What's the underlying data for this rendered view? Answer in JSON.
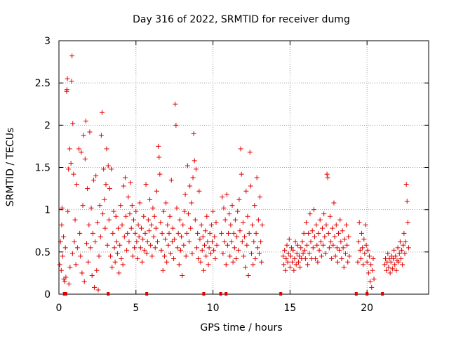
{
  "chart_data": {
    "type": "scatter",
    "title": "Day 316 of 2022, SRMTID for receiver dumg",
    "xlabel": "GPS time / hours",
    "ylabel": "SRMTID / TECUs",
    "xlim": [
      0,
      24
    ],
    "ylim": [
      0,
      3
    ],
    "xticks": [
      0,
      5,
      10,
      15,
      20
    ],
    "yticks": [
      0,
      0.5,
      1,
      1.5,
      2,
      2.5,
      3
    ],
    "xtick_labels": [
      "0",
      "5",
      "10",
      "15",
      "20"
    ],
    "ytick_labels": [
      "0",
      "0.5",
      "1",
      "1.5",
      "2",
      "2.5",
      "3"
    ],
    "grid": true,
    "marker": "+",
    "color": "#e00000",
    "series_name": "SRMTID",
    "baseline_markers_x": [
      0.35,
      0.45,
      3.2,
      5.7,
      9.4,
      10.5,
      10.85,
      14.4,
      19.3,
      20.0,
      21.0
    ],
    "points": [
      [
        0.05,
        0.35
      ],
      [
        0.1,
        0.62
      ],
      [
        0.15,
        0.28
      ],
      [
        0.18,
        0.82
      ],
      [
        0.2,
        1.02
      ],
      [
        0.25,
        0.45
      ],
      [
        0.3,
        0.68
      ],
      [
        0.32,
        0.18
      ],
      [
        0.38,
        0.15
      ],
      [
        0.42,
        0.55
      ],
      [
        0.45,
        0.2
      ],
      [
        0.5,
        2.4
      ],
      [
        0.52,
        2.42
      ],
      [
        0.55,
        2.55
      ],
      [
        0.58,
        0.98
      ],
      [
        0.62,
        1.48
      ],
      [
        0.65,
        0.12
      ],
      [
        0.7,
        1.72
      ],
      [
        0.72,
        0.32
      ],
      [
        0.78,
        1.55
      ],
      [
        0.82,
        2.52
      ],
      [
        0.85,
        2.82
      ],
      [
        0.88,
        0.48
      ],
      [
        0.9,
        2.02
      ],
      [
        0.95,
        1.42
      ],
      [
        1.0,
        0.62
      ],
      [
        1.05,
        0.88
      ],
      [
        1.1,
        0.35
      ],
      [
        1.15,
        1.3
      ],
      [
        1.2,
        0.55
      ],
      [
        1.3,
        1.72
      ],
      [
        1.35,
        0.72
      ],
      [
        1.4,
        0.45
      ],
      [
        1.45,
        1.68
      ],
      [
        1.5,
        0.25
      ],
      [
        1.55,
        1.05
      ],
      [
        1.6,
        1.88
      ],
      [
        1.65,
        0.15
      ],
      [
        1.7,
        1.6
      ],
      [
        1.75,
        2.05
      ],
      [
        1.8,
        0.6
      ],
      [
        1.85,
        1.25
      ],
      [
        1.9,
        0.38
      ],
      [
        1.95,
        0.82
      ],
      [
        2.0,
        1.92
      ],
      [
        2.05,
        0.55
      ],
      [
        2.1,
        1.02
      ],
      [
        2.15,
        0.22
      ],
      [
        2.2,
        0.72
      ],
      [
        2.25,
        1.35
      ],
      [
        2.3,
        0.08
      ],
      [
        2.35,
        0.62
      ],
      [
        2.4,
        1.4
      ],
      [
        2.45,
        0.28
      ],
      [
        2.5,
        0.85
      ],
      [
        2.55,
        0.05
      ],
      [
        2.6,
        0.45
      ],
      [
        2.65,
        1.05
      ],
      [
        2.7,
        0.68
      ],
      [
        2.75,
        1.88
      ],
      [
        2.8,
        2.15
      ],
      [
        2.85,
        0.95
      ],
      [
        2.9,
        1.48
      ],
      [
        2.95,
        1.12
      ],
      [
        3.0,
        0.78
      ],
      [
        3.05,
        1.3
      ],
      [
        3.1,
        1.72
      ],
      [
        3.15,
        0.58
      ],
      [
        3.2,
        1.52
      ],
      [
        3.25,
        0.88
      ],
      [
        3.3,
        1.25
      ],
      [
        3.35,
        0.45
      ],
      [
        3.4,
        1.48
      ],
      [
        3.45,
        0.32
      ],
      [
        3.5,
        0.72
      ],
      [
        3.55,
        0.98
      ],
      [
        3.6,
        0.55
      ],
      [
        3.65,
        0.38
      ],
      [
        3.7,
        0.92
      ],
      [
        3.75,
        0.62
      ],
      [
        3.8,
        0.48
      ],
      [
        3.85,
        0.78
      ],
      [
        3.9,
        0.25
      ],
      [
        3.95,
        0.58
      ],
      [
        4.0,
        1.05
      ],
      [
        4.05,
        0.42
      ],
      [
        4.1,
        0.82
      ],
      [
        4.15,
        0.35
      ],
      [
        4.2,
        1.28
      ],
      [
        4.25,
        0.68
      ],
      [
        4.3,
        1.38
      ],
      [
        4.35,
        0.92
      ],
      [
        4.4,
        0.52
      ],
      [
        4.45,
        0.72
      ],
      [
        4.5,
        1.15
      ],
      [
        4.55,
        0.62
      ],
      [
        4.6,
        0.95
      ],
      [
        4.65,
        1.32
      ],
      [
        4.7,
        0.78
      ],
      [
        4.75,
        1.05
      ],
      [
        4.8,
        0.45
      ],
      [
        4.85,
        0.88
      ],
      [
        4.9,
        0.55
      ],
      [
        4.95,
        0.72
      ],
      [
        5.0,
        0.98
      ],
      [
        5.05,
        0.62
      ],
      [
        5.1,
        0.42
      ],
      [
        5.15,
        0.82
      ],
      [
        5.2,
        0.68
      ],
      [
        5.25,
        1.08
      ],
      [
        5.3,
        0.55
      ],
      [
        5.35,
        0.78
      ],
      [
        5.4,
        0.38
      ],
      [
        5.45,
        0.65
      ],
      [
        5.5,
        0.92
      ],
      [
        5.55,
        0.52
      ],
      [
        5.6,
        0.72
      ],
      [
        5.65,
        1.3
      ],
      [
        5.7,
        0.48
      ],
      [
        5.75,
        0.62
      ],
      [
        5.8,
        0.88
      ],
      [
        5.85,
        0.75
      ],
      [
        5.9,
        1.12
      ],
      [
        5.95,
        0.58
      ],
      [
        6.0,
        0.82
      ],
      [
        6.05,
        0.45
      ],
      [
        6.1,
        1.02
      ],
      [
        6.15,
        0.68
      ],
      [
        6.2,
        0.92
      ],
      [
        6.25,
        0.55
      ],
      [
        6.3,
        0.78
      ],
      [
        6.35,
        1.22
      ],
      [
        6.4,
        0.62
      ],
      [
        6.45,
        1.75
      ],
      [
        6.5,
        1.62
      ],
      [
        6.55,
        1.42
      ],
      [
        6.6,
        0.85
      ],
      [
        6.65,
        0.52
      ],
      [
        6.7,
        0.72
      ],
      [
        6.75,
        0.28
      ],
      [
        6.8,
        0.98
      ],
      [
        6.85,
        0.45
      ],
      [
        6.9,
        0.65
      ],
      [
        6.95,
        1.08
      ],
      [
        7.0,
        0.38
      ],
      [
        7.05,
        0.82
      ],
      [
        7.1,
        0.58
      ],
      [
        7.15,
        0.72
      ],
      [
        7.2,
        0.92
      ],
      [
        7.25,
        0.48
      ],
      [
        7.3,
        1.35
      ],
      [
        7.35,
        0.62
      ],
      [
        7.4,
        0.78
      ],
      [
        7.45,
        0.42
      ],
      [
        7.5,
        0.65
      ],
      [
        7.55,
        2.25
      ],
      [
        7.6,
        2.0
      ],
      [
        7.65,
        1.02
      ],
      [
        7.7,
        0.55
      ],
      [
        7.75,
        0.72
      ],
      [
        7.8,
        0.35
      ],
      [
        7.85,
        0.88
      ],
      [
        7.9,
        0.52
      ],
      [
        7.95,
        0.68
      ],
      [
        8.0,
        0.22
      ],
      [
        8.05,
        0.82
      ],
      [
        8.1,
        0.58
      ],
      [
        8.15,
        0.98
      ],
      [
        8.2,
        1.18
      ],
      [
        8.25,
        0.45
      ],
      [
        8.3,
        0.72
      ],
      [
        8.35,
        1.52
      ],
      [
        8.4,
        0.95
      ],
      [
        8.45,
        0.62
      ],
      [
        8.5,
        1.28
      ],
      [
        8.55,
        0.78
      ],
      [
        8.6,
        1.08
      ],
      [
        8.65,
        0.48
      ],
      [
        8.7,
        1.38
      ],
      [
        8.75,
        1.9
      ],
      [
        8.8,
        1.58
      ],
      [
        8.85,
        0.88
      ],
      [
        8.9,
        1.48
      ],
      [
        8.95,
        0.55
      ],
      [
        9.0,
        0.72
      ],
      [
        9.05,
        0.42
      ],
      [
        9.1,
        1.22
      ],
      [
        9.15,
        0.65
      ],
      [
        9.2,
        0.38
      ],
      [
        9.25,
        0.82
      ],
      [
        9.3,
        0.52
      ],
      [
        9.35,
        0.68
      ],
      [
        9.4,
        0.28
      ],
      [
        9.45,
        0.58
      ],
      [
        9.5,
        0.75
      ],
      [
        9.55,
        0.45
      ],
      [
        9.6,
        0.92
      ],
      [
        9.65,
        0.62
      ],
      [
        9.7,
        0.35
      ],
      [
        9.75,
        0.55
      ],
      [
        9.8,
        0.72
      ],
      [
        9.85,
        0.48
      ],
      [
        9.9,
        0.82
      ],
      [
        9.95,
        0.62
      ],
      [
        10.0,
        0.98
      ],
      [
        10.05,
        0.52
      ],
      [
        10.1,
        0.68
      ],
      [
        10.15,
        0.42
      ],
      [
        10.2,
        0.85
      ],
      [
        10.25,
        0.58
      ],
      [
        10.55,
        0.72
      ],
      [
        10.6,
        1.15
      ],
      [
        10.65,
        0.48
      ],
      [
        10.7,
        1.02
      ],
      [
        10.75,
        0.62
      ],
      [
        10.8,
        0.88
      ],
      [
        10.85,
        0.35
      ],
      [
        10.9,
        1.18
      ],
      [
        10.95,
        0.58
      ],
      [
        11.0,
        0.72
      ],
      [
        11.05,
        0.95
      ],
      [
        11.1,
        0.45
      ],
      [
        11.15,
        0.82
      ],
      [
        11.2,
        0.62
      ],
      [
        11.25,
        1.05
      ],
      [
        11.3,
        0.38
      ],
      [
        11.35,
        0.72
      ],
      [
        11.4,
        0.55
      ],
      [
        11.45,
        0.88
      ],
      [
        11.5,
        0.42
      ],
      [
        11.55,
        0.68
      ],
      [
        11.6,
        0.98
      ],
      [
        11.65,
        0.52
      ],
      [
        11.7,
        1.12
      ],
      [
        11.75,
        0.75
      ],
      [
        11.8,
        1.72
      ],
      [
        11.85,
        1.42
      ],
      [
        11.9,
        0.62
      ],
      [
        11.95,
        0.85
      ],
      [
        12.0,
        0.45
      ],
      [
        12.05,
        0.68
      ],
      [
        12.1,
        0.32
      ],
      [
        12.15,
        1.22
      ],
      [
        12.2,
        0.58
      ],
      [
        12.25,
        0.92
      ],
      [
        12.3,
        0.22
      ],
      [
        12.35,
        0.72
      ],
      [
        12.4,
        1.68
      ],
      [
        12.45,
        1.28
      ],
      [
        12.5,
        0.48
      ],
      [
        12.55,
        0.82
      ],
      [
        12.6,
        0.35
      ],
      [
        12.65,
        0.62
      ],
      [
        12.7,
        1.05
      ],
      [
        12.75,
        0.42
      ],
      [
        12.8,
        0.72
      ],
      [
        12.85,
        1.38
      ],
      [
        12.9,
        0.55
      ],
      [
        12.95,
        0.88
      ],
      [
        13.0,
        0.48
      ],
      [
        13.05,
        1.15
      ],
      [
        13.1,
        0.62
      ],
      [
        13.15,
        0.38
      ],
      [
        13.2,
        0.82
      ],
      [
        14.55,
        0.45
      ],
      [
        14.6,
        0.35
      ],
      [
        14.65,
        0.52
      ],
      [
        14.7,
        0.28
      ],
      [
        14.75,
        0.42
      ],
      [
        14.8,
        0.58
      ],
      [
        14.85,
        0.38
      ],
      [
        14.9,
        0.48
      ],
      [
        14.95,
        0.65
      ],
      [
        15.0,
        0.32
      ],
      [
        15.05,
        0.45
      ],
      [
        15.1,
        0.55
      ],
      [
        15.15,
        0.38
      ],
      [
        15.2,
        0.52
      ],
      [
        15.25,
        0.28
      ],
      [
        15.3,
        0.42
      ],
      [
        15.35,
        0.62
      ],
      [
        15.4,
        0.35
      ],
      [
        15.45,
        0.48
      ],
      [
        15.5,
        0.58
      ],
      [
        15.55,
        0.38
      ],
      [
        15.6,
        0.45
      ],
      [
        15.65,
        0.32
      ],
      [
        15.7,
        0.55
      ],
      [
        15.75,
        0.42
      ],
      [
        15.8,
        0.62
      ],
      [
        15.85,
        0.48
      ],
      [
        15.9,
        0.72
      ],
      [
        15.95,
        0.52
      ],
      [
        16.0,
        0.42
      ],
      [
        16.05,
        0.85
      ],
      [
        16.1,
        0.58
      ],
      [
        16.15,
        0.35
      ],
      [
        16.2,
        0.72
      ],
      [
        16.25,
        0.48
      ],
      [
        16.3,
        0.95
      ],
      [
        16.35,
        0.62
      ],
      [
        16.4,
        0.42
      ],
      [
        16.45,
        0.75
      ],
      [
        16.5,
        0.55
      ],
      [
        16.55,
        1.0
      ],
      [
        16.6,
        0.68
      ],
      [
        16.65,
        0.42
      ],
      [
        16.7,
        0.82
      ],
      [
        16.75,
        0.58
      ],
      [
        16.8,
        0.38
      ],
      [
        16.85,
        0.72
      ],
      [
        16.9,
        0.52
      ],
      [
        16.95,
        0.88
      ],
      [
        17.0,
        0.62
      ],
      [
        17.05,
        0.45
      ],
      [
        17.1,
        0.78
      ],
      [
        17.15,
        0.58
      ],
      [
        17.2,
        0.95
      ],
      [
        17.25,
        0.68
      ],
      [
        17.3,
        0.48
      ],
      [
        17.35,
        0.82
      ],
      [
        17.4,
        1.42
      ],
      [
        17.45,
        1.38
      ],
      [
        17.5,
        0.72
      ],
      [
        17.55,
        0.55
      ],
      [
        17.6,
        0.92
      ],
      [
        17.65,
        0.62
      ],
      [
        17.7,
        0.42
      ],
      [
        17.75,
        0.78
      ],
      [
        17.8,
        0.58
      ],
      [
        17.85,
        1.08
      ],
      [
        17.9,
        0.68
      ],
      [
        17.95,
        0.45
      ],
      [
        18.0,
        0.82
      ],
      [
        18.05,
        0.55
      ],
      [
        18.1,
        0.38
      ],
      [
        18.15,
        0.72
      ],
      [
        18.2,
        0.52
      ],
      [
        18.25,
        0.88
      ],
      [
        18.3,
        0.62
      ],
      [
        18.35,
        0.42
      ],
      [
        18.4,
        0.75
      ],
      [
        18.45,
        0.55
      ],
      [
        18.5,
        0.32
      ],
      [
        18.55,
        0.65
      ],
      [
        18.6,
        0.48
      ],
      [
        18.65,
        0.82
      ],
      [
        18.7,
        0.58
      ],
      [
        18.75,
        0.38
      ],
      [
        18.8,
        0.68
      ],
      [
        18.85,
        0.45
      ],
      [
        19.4,
        0.38
      ],
      [
        19.45,
        0.62
      ],
      [
        19.5,
        0.85
      ],
      [
        19.55,
        0.52
      ],
      [
        19.6,
        0.42
      ],
      [
        19.65,
        0.72
      ],
      [
        19.7,
        0.55
      ],
      [
        19.75,
        0.35
      ],
      [
        19.8,
        0.65
      ],
      [
        19.85,
        0.48
      ],
      [
        19.9,
        0.82
      ],
      [
        19.95,
        0.58
      ],
      [
        20.0,
        0.38
      ],
      [
        20.05,
        0.52
      ],
      [
        20.1,
        0.25
      ],
      [
        20.15,
        0.45
      ],
      [
        20.2,
        0.15
      ],
      [
        20.25,
        0.35
      ],
      [
        20.3,
        0.08
      ],
      [
        20.35,
        0.28
      ],
      [
        20.4,
        0.42
      ],
      [
        20.45,
        0.18
      ],
      [
        21.15,
        0.35
      ],
      [
        21.2,
        0.42
      ],
      [
        21.25,
        0.28
      ],
      [
        21.3,
        0.38
      ],
      [
        21.35,
        0.48
      ],
      [
        21.4,
        0.32
      ],
      [
        21.45,
        0.42
      ],
      [
        21.5,
        0.25
      ],
      [
        21.55,
        0.38
      ],
      [
        21.6,
        0.45
      ],
      [
        21.65,
        0.3
      ],
      [
        21.7,
        0.42
      ],
      [
        21.75,
        0.52
      ],
      [
        21.8,
        0.35
      ],
      [
        21.85,
        0.45
      ],
      [
        21.9,
        0.28
      ],
      [
        21.95,
        0.4
      ],
      [
        22.0,
        0.55
      ],
      [
        22.05,
        0.38
      ],
      [
        22.1,
        0.48
      ],
      [
        22.15,
        0.62
      ],
      [
        22.2,
        0.42
      ],
      [
        22.25,
        0.52
      ],
      [
        22.3,
        0.35
      ],
      [
        22.35,
        0.58
      ],
      [
        22.4,
        0.72
      ],
      [
        22.45,
        0.48
      ],
      [
        22.5,
        0.62
      ],
      [
        22.55,
        1.3
      ],
      [
        22.6,
        1.1
      ],
      [
        22.65,
        0.85
      ],
      [
        22.7,
        0.55
      ]
    ]
  }
}
